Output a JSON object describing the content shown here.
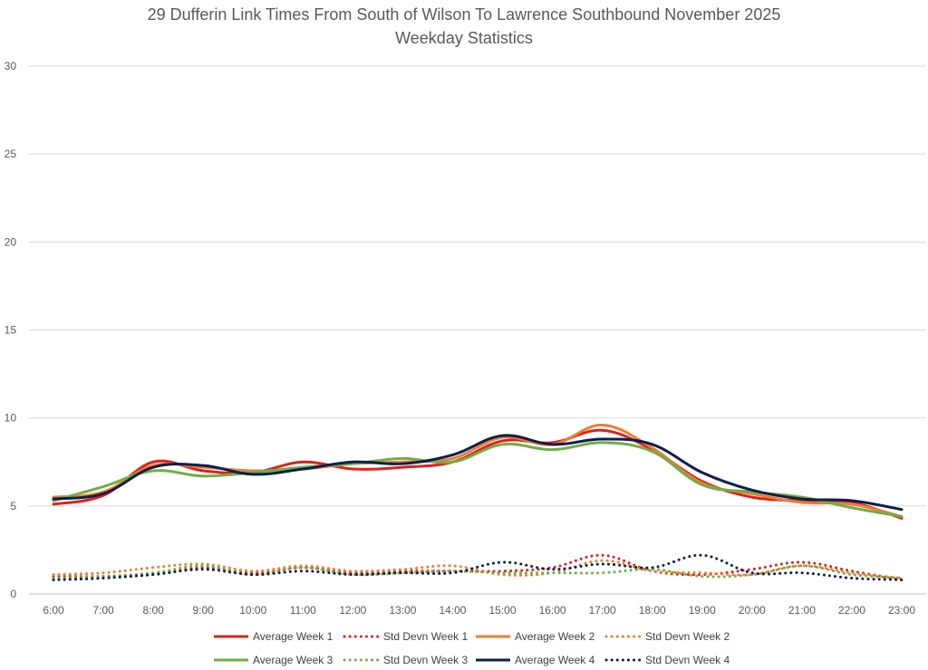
{
  "chart_data": {
    "type": "line",
    "title": "29 Dufferin Link Times From South of Wilson To Lawrence Southbound November 2025",
    "subtitle": "Weekday Statistics",
    "xlabel": "",
    "ylabel": "",
    "ylim": [
      0,
      30
    ],
    "yticks": [
      0,
      5,
      10,
      15,
      20,
      25,
      30
    ],
    "grid": true,
    "legend_position": "bottom",
    "categories": [
      "6:00",
      "7:00",
      "8:00",
      "9:00",
      "10:00",
      "11:00",
      "12:00",
      "13:00",
      "14:00",
      "15:00",
      "16:00",
      "17:00",
      "18:00",
      "19:00",
      "20:00",
      "21:00",
      "22:00",
      "23:00"
    ],
    "series": [
      {
        "name": "Average Week 1",
        "style": "solid",
        "color": "#e0201b",
        "values": [
          5.1,
          5.6,
          7.5,
          7.0,
          6.9,
          7.5,
          7.1,
          7.2,
          7.5,
          8.7,
          8.6,
          9.3,
          8.2,
          6.4,
          5.5,
          5.3,
          5.2,
          4.3
        ]
      },
      {
        "name": "Std Devn Week 1",
        "style": "dotted",
        "color": "#e0201b",
        "values": [
          1.0,
          1.0,
          1.1,
          1.5,
          1.2,
          1.5,
          1.2,
          1.3,
          1.3,
          1.3,
          1.5,
          2.2,
          1.3,
          1.1,
          1.4,
          1.8,
          1.3,
          0.8
        ]
      },
      {
        "name": "Average Week 2",
        "style": "solid",
        "color": "#ed7d31",
        "values": [
          5.5,
          5.8,
          7.3,
          7.2,
          7.0,
          7.1,
          7.4,
          7.5,
          7.7,
          8.9,
          8.5,
          9.6,
          8.3,
          6.3,
          5.7,
          5.2,
          5.1,
          4.4
        ]
      },
      {
        "name": "Std Devn Week 2",
        "style": "dotted",
        "color": "#ed7d31",
        "values": [
          1.1,
          1.2,
          1.5,
          1.7,
          1.3,
          1.6,
          1.3,
          1.4,
          1.6,
          1.1,
          1.2,
          1.9,
          1.3,
          1.2,
          1.1,
          1.6,
          1.2,
          0.9
        ]
      },
      {
        "name": "Average Week 3",
        "style": "solid",
        "color": "#70ad47",
        "values": [
          5.3,
          6.1,
          7.0,
          6.7,
          6.9,
          7.2,
          7.4,
          7.7,
          7.5,
          8.5,
          8.2,
          8.6,
          8.1,
          6.2,
          5.8,
          5.5,
          4.9,
          4.4
        ]
      },
      {
        "name": "Std Devn Week 3",
        "style": "dotted",
        "color": "#70ad47",
        "values": [
          0.9,
          1.0,
          1.2,
          1.6,
          1.1,
          1.5,
          1.1,
          1.2,
          1.3,
          1.2,
          1.2,
          1.2,
          1.4,
          1.0,
          1.1,
          1.6,
          1.1,
          0.9
        ]
      },
      {
        "name": "Average Week 4",
        "style": "solid",
        "color": "#0b1f4f",
        "values": [
          5.4,
          5.7,
          7.2,
          7.3,
          6.8,
          7.1,
          7.5,
          7.4,
          7.9,
          9.0,
          8.5,
          8.8,
          8.5,
          6.9,
          5.9,
          5.4,
          5.3,
          4.8
        ]
      },
      {
        "name": "Std Devn Week 4",
        "style": "dotted",
        "color": "#0b1f4f",
        "values": [
          0.8,
          0.9,
          1.1,
          1.4,
          1.1,
          1.3,
          1.1,
          1.2,
          1.2,
          1.8,
          1.4,
          1.7,
          1.5,
          2.2,
          1.2,
          1.2,
          0.9,
          0.8
        ]
      }
    ]
  }
}
